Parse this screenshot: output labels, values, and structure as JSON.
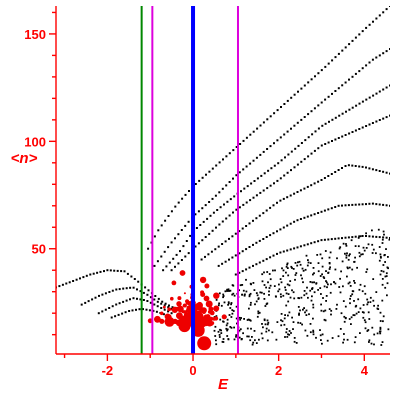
{
  "chart_data": {
    "type": "scatter",
    "title": "",
    "xlabel": "E",
    "ylabel": "<n>",
    "xlim": [
      -3.2,
      4.6
    ],
    "ylim": [
      1,
      163
    ],
    "xticks": [
      -2,
      0,
      2,
      4
    ],
    "yticks": [
      50,
      100,
      150
    ],
    "x_tick_labels": [
      "-2",
      "0",
      "2",
      "4"
    ],
    "y_tick_labels": [
      "50",
      "100",
      "150"
    ],
    "grid": false,
    "legend": "none",
    "colors": {
      "axis": "#ff0000",
      "curves": "#000000",
      "cluster": "#ee0000",
      "blue_line": "#0000ff",
      "green_line": "#008800",
      "magenta_lines": "#dd00dd"
    },
    "vertical_lines": [
      {
        "x": 0.0,
        "color": "#0000ff",
        "style": "thick"
      },
      {
        "x": -1.2,
        "color": "#008800",
        "style": "thin"
      },
      {
        "x": -0.95,
        "color": "#dd00dd",
        "style": "thin"
      },
      {
        "x": 1.05,
        "color": "#dd00dd",
        "style": "thin"
      }
    ],
    "curves": [
      {
        "points": [
          [
            -3.2,
            32
          ],
          [
            -2.8,
            35
          ],
          [
            -2.4,
            38
          ],
          [
            -2.0,
            40
          ],
          [
            -1.6,
            39.5
          ],
          [
            -1.3,
            35
          ],
          [
            -1.0,
            30
          ],
          [
            -0.7,
            25
          ],
          [
            -0.4,
            22
          ]
        ]
      },
      {
        "points": [
          [
            -2.6,
            24
          ],
          [
            -2.2,
            28
          ],
          [
            -1.8,
            31
          ],
          [
            -1.4,
            32
          ],
          [
            -1.1,
            29
          ],
          [
            -0.8,
            25
          ],
          [
            -0.5,
            22
          ]
        ]
      },
      {
        "points": [
          [
            -2.2,
            20
          ],
          [
            -1.8,
            24
          ],
          [
            -1.4,
            27
          ],
          [
            -1.1,
            26
          ],
          [
            -0.8,
            23
          ],
          [
            -0.5,
            20
          ]
        ]
      },
      {
        "points": [
          [
            -1.9,
            18
          ],
          [
            -1.5,
            21
          ],
          [
            -1.2,
            22
          ],
          [
            -0.9,
            21
          ],
          [
            -0.6,
            19
          ]
        ]
      },
      {
        "points": [
          [
            -1.05,
            50
          ],
          [
            -0.8,
            59
          ],
          [
            -0.4,
            70
          ],
          [
            0,
            79
          ],
          [
            1,
            97
          ],
          [
            2,
            115
          ],
          [
            3,
            133
          ],
          [
            4,
            152
          ],
          [
            4.6,
            163
          ]
        ]
      },
      {
        "points": [
          [
            -0.9,
            42
          ],
          [
            -0.5,
            53
          ],
          [
            0,
            65
          ],
          [
            0.5,
            74
          ],
          [
            1,
            84
          ],
          [
            2,
            101
          ],
          [
            3,
            118
          ],
          [
            4.2,
            138
          ],
          [
            4.6,
            143
          ]
        ]
      },
      {
        "points": [
          [
            -0.7,
            40
          ],
          [
            -0.3,
            49
          ],
          [
            0,
            58
          ],
          [
            0.5,
            67
          ],
          [
            1,
            75
          ],
          [
            2,
            90
          ],
          [
            3,
            107
          ],
          [
            4.6,
            126
          ]
        ]
      },
      {
        "points": [
          [
            -0.5,
            40
          ],
          [
            0,
            50
          ],
          [
            0.6,
            61
          ],
          [
            1,
            68
          ],
          [
            2,
            82
          ],
          [
            3,
            98
          ],
          [
            4.6,
            112
          ]
        ]
      },
      {
        "points": [
          [
            0.2,
            45
          ],
          [
            1,
            57
          ],
          [
            2,
            72
          ],
          [
            3,
            82
          ],
          [
            3.6,
            89
          ],
          [
            4.0,
            88
          ],
          [
            4.6,
            85
          ]
        ]
      },
      {
        "points": [
          [
            0.6,
            42
          ],
          [
            1.5,
            53
          ],
          [
            2.4,
            63
          ],
          [
            3.4,
            70
          ],
          [
            4.2,
            71
          ],
          [
            4.6,
            70
          ]
        ]
      },
      {
        "points": [
          [
            1.0,
            38
          ],
          [
            2.0,
            48
          ],
          [
            3.0,
            54
          ],
          [
            4.0,
            56
          ],
          [
            4.6,
            55
          ]
        ]
      }
    ],
    "scatter_region": {
      "x": [
        0.5,
        4.6
      ],
      "y": [
        5,
        65
      ],
      "description": "dense black point cloud"
    },
    "red_cluster": {
      "x": [
        -1.0,
        1.05
      ],
      "y": [
        4,
        42
      ],
      "center": [
        0,
        15
      ]
    }
  }
}
